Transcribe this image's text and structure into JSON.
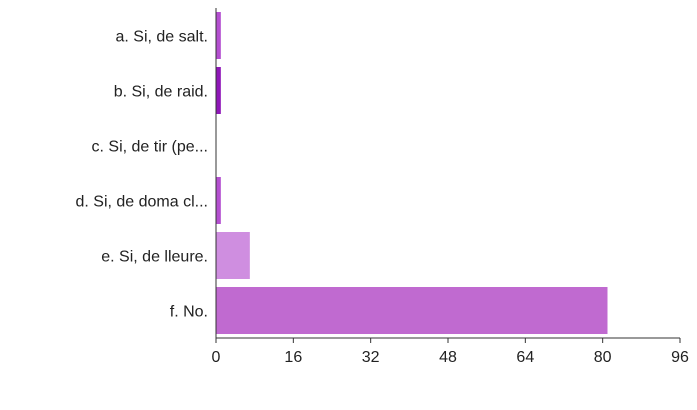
{
  "chart_data": {
    "type": "bar",
    "orientation": "horizontal",
    "categories": [
      "a. Si, de salt.",
      "b. Si, de raid.",
      "c. Si, de tir (pe...",
      "d. Si, de doma cl...",
      "e. Si, de lleure.",
      "f. No."
    ],
    "values": [
      1,
      1,
      0,
      1,
      7,
      81
    ],
    "bar_colors": [
      "#b44fd0",
      "#8f17b8",
      "#b44fd0",
      "#b44fd0",
      "#cf8ee0",
      "#c06ad0"
    ],
    "xlim": [
      0,
      96
    ],
    "x_ticks": [
      0,
      16,
      32,
      48,
      64,
      80,
      96
    ],
    "grid": false,
    "legend": "none"
  }
}
